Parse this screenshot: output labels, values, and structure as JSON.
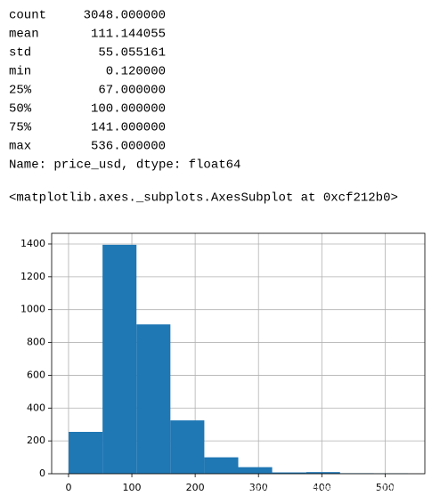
{
  "describe": {
    "rows": [
      [
        "count",
        "3048.000000"
      ],
      [
        "mean",
        "111.144055"
      ],
      [
        "std",
        "55.055161"
      ],
      [
        "min",
        "0.120000"
      ],
      [
        "25%",
        "67.000000"
      ],
      [
        "50%",
        "100.000000"
      ],
      [
        "75%",
        "141.000000"
      ],
      [
        "max",
        "536.000000"
      ]
    ],
    "footer": "Name: price_usd, dtype: float64"
  },
  "repr": "<matplotlib.axes._subplots.AxesSubplot at 0xcf212b0>",
  "watermark": "https://blog.csdn.net/weixin_43088414",
  "chart_data": {
    "type": "histogram",
    "bins": [
      0.12,
      53.708,
      107.296,
      160.884,
      214.472,
      268.06,
      321.648,
      375.236,
      428.824,
      482.412,
      536.0
    ],
    "values": [
      255,
      1395,
      910,
      325,
      100,
      40,
      8,
      10,
      3,
      2
    ],
    "color": "#1f77b4",
    "xlim": [
      -26.67,
      562.79
    ],
    "xticks": [
      0,
      100,
      200,
      300,
      400,
      500
    ],
    "ylim": [
      0,
      1465
    ],
    "yticks": [
      0,
      200,
      400,
      600,
      800,
      1000,
      1200,
      1400
    ],
    "grid": true
  }
}
